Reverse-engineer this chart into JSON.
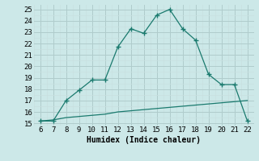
{
  "x_humidex": [
    6,
    7,
    8,
    9,
    10,
    11,
    12,
    13,
    14,
    15,
    16,
    17,
    18,
    19,
    20,
    21,
    22
  ],
  "y_main": [
    15.2,
    15.2,
    17.0,
    17.9,
    18.8,
    18.8,
    21.7,
    23.3,
    22.9,
    24.5,
    25.0,
    23.3,
    22.3,
    19.3,
    18.4,
    18.4,
    15.2
  ],
  "y_baseline": [
    15.2,
    15.3,
    15.5,
    15.6,
    15.7,
    15.8,
    16.0,
    16.1,
    16.2,
    16.3,
    16.4,
    16.5,
    16.6,
    16.7,
    16.8,
    16.9,
    17.0
  ],
  "line_color": "#1a7a6e",
  "bg_color": "#cce8e8",
  "grid_major_color": "#b0cccc",
  "grid_minor_color": "#c8e0e0",
  "xlabel": "Humidex (Indice chaleur)",
  "xlim": [
    5.5,
    22.5
  ],
  "ylim": [
    14.8,
    25.4
  ],
  "xticks": [
    6,
    7,
    8,
    9,
    10,
    11,
    12,
    13,
    14,
    15,
    16,
    17,
    18,
    19,
    20,
    21,
    22
  ],
  "yticks": [
    15,
    16,
    17,
    18,
    19,
    20,
    21,
    22,
    23,
    24,
    25
  ]
}
